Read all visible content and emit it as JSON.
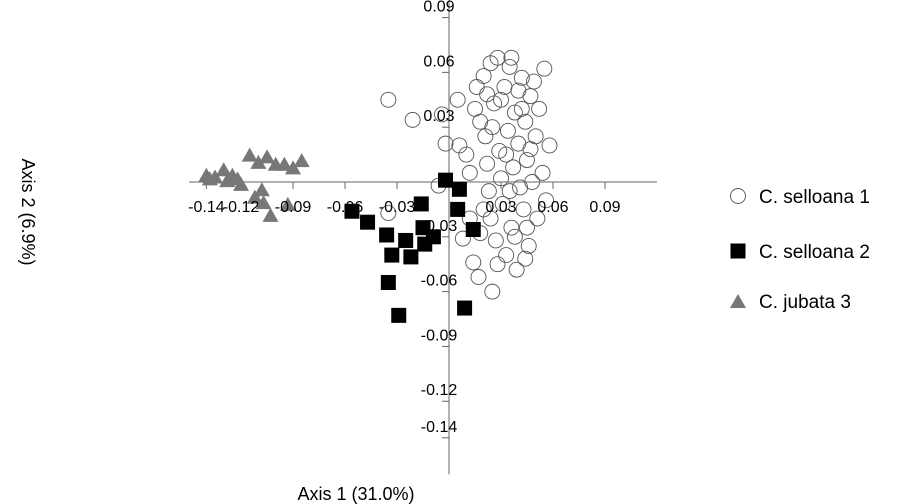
{
  "chart_data": {
    "type": "scatter",
    "title": "",
    "xlabel": "Axis 1 (31.0%)",
    "ylabel": "Axis 2 (6.9%)",
    "xlim": [
      -0.15,
      0.12
    ],
    "ylim": [
      -0.16,
      0.1
    ],
    "x_ticks": [
      -0.14,
      -0.12,
      -0.09,
      -0.06,
      -0.03,
      0.03,
      0.06,
      0.09
    ],
    "x_tick_labels": [
      "-0.14",
      "-0.12",
      "-0.09",
      "-0.06",
      "-0.03",
      "0.03",
      "0.06",
      "0.09"
    ],
    "y_ticks": [
      0.09,
      0.06,
      0.03,
      -0.03,
      -0.06,
      -0.09,
      -0.12,
      -0.14
    ],
    "y_tick_labels": [
      "0.09",
      "0.06",
      "0.03",
      "-0.03",
      "-0.06",
      "-0.09",
      "-0.12",
      "-0.14"
    ],
    "grid": false,
    "legend_position": "right",
    "series": [
      {
        "name": "C. selloana 1",
        "marker": "open-circle",
        "color": "#555555",
        "points": [
          [
            -0.035,
            0.045
          ],
          [
            -0.021,
            0.034
          ],
          [
            -0.035,
            -0.017
          ],
          [
            -0.004,
            0.037
          ],
          [
            -0.002,
            0.021
          ],
          [
            -0.006,
            -0.002
          ],
          [
            0.005,
            0.045
          ],
          [
            0.006,
            0.02
          ],
          [
            0.008,
            -0.031
          ],
          [
            0.01,
            0.015
          ],
          [
            0.012,
            0.005
          ],
          [
            0.014,
            -0.044
          ],
          [
            0.017,
            -0.052
          ],
          [
            0.018,
            0.033
          ],
          [
            0.02,
            0.058
          ],
          [
            0.021,
            0.025
          ],
          [
            0.022,
            0.01
          ],
          [
            0.023,
            -0.005
          ],
          [
            0.024,
            -0.02
          ],
          [
            0.025,
            -0.06
          ],
          [
            0.026,
            0.043
          ],
          [
            0.027,
            -0.032
          ],
          [
            0.028,
            0.068
          ],
          [
            0.029,
            0.017
          ],
          [
            0.03,
            0.002
          ],
          [
            0.031,
            -0.012
          ],
          [
            0.032,
            0.052
          ],
          [
            0.033,
            -0.04
          ],
          [
            0.034,
            0.028
          ],
          [
            0.035,
            0.063
          ],
          [
            0.036,
            -0.025
          ],
          [
            0.037,
            0.008
          ],
          [
            0.038,
            0.038
          ],
          [
            0.039,
            -0.048
          ],
          [
            0.04,
            0.021
          ],
          [
            0.041,
            -0.003
          ],
          [
            0.042,
            0.057
          ],
          [
            0.043,
            -0.015
          ],
          [
            0.044,
            0.033
          ],
          [
            0.045,
            0.012
          ],
          [
            0.046,
            -0.035
          ],
          [
            0.047,
            0.047
          ],
          [
            0.048,
            0.0
          ],
          [
            0.05,
            0.025
          ],
          [
            0.051,
            -0.02
          ],
          [
            0.052,
            0.04
          ],
          [
            0.054,
            0.005
          ],
          [
            0.055,
            0.062
          ],
          [
            0.056,
            -0.01
          ],
          [
            0.058,
            0.02
          ],
          [
            0.02,
            -0.015
          ],
          [
            0.025,
            0.03
          ],
          [
            0.03,
            0.045
          ],
          [
            0.035,
            -0.005
          ],
          [
            0.04,
            0.05
          ],
          [
            0.045,
            -0.025
          ],
          [
            0.015,
            0.04
          ],
          [
            0.018,
            -0.028
          ],
          [
            0.022,
            0.048
          ],
          [
            0.028,
            -0.045
          ],
          [
            0.033,
            0.015
          ],
          [
            0.038,
            -0.03
          ],
          [
            0.042,
            0.04
          ],
          [
            0.047,
            0.018
          ],
          [
            0.012,
            -0.02
          ],
          [
            0.016,
            0.052
          ],
          [
            0.024,
            0.065
          ],
          [
            0.036,
            0.068
          ],
          [
            0.044,
            -0.042
          ],
          [
            0.049,
            0.055
          ]
        ]
      },
      {
        "name": "C. selloana 2",
        "marker": "filled-square",
        "color": "#000000",
        "points": [
          [
            -0.056,
            -0.016
          ],
          [
            -0.047,
            -0.022
          ],
          [
            -0.036,
            -0.029
          ],
          [
            -0.025,
            -0.032
          ],
          [
            -0.014,
            -0.034
          ],
          [
            -0.015,
            -0.025
          ],
          [
            -0.009,
            -0.03
          ],
          [
            -0.002,
            0.001
          ],
          [
            0.006,
            -0.004
          ],
          [
            0.005,
            -0.015
          ],
          [
            0.014,
            -0.026
          ],
          [
            -0.033,
            -0.04
          ],
          [
            -0.022,
            -0.041
          ],
          [
            -0.035,
            -0.055
          ],
          [
            -0.029,
            -0.073
          ],
          [
            0.009,
            -0.069
          ],
          [
            -0.016,
            -0.012
          ]
        ]
      },
      {
        "name": "C. jubata 3",
        "marker": "filled-triangle",
        "color": "#777777",
        "points": [
          [
            -0.14,
            0.004
          ],
          [
            -0.135,
            0.003
          ],
          [
            -0.13,
            0.007
          ],
          [
            -0.125,
            0.004
          ],
          [
            -0.12,
            -0.001
          ],
          [
            -0.115,
            0.015
          ],
          [
            -0.11,
            0.011
          ],
          [
            -0.105,
            0.014
          ],
          [
            -0.1,
            0.01
          ],
          [
            -0.095,
            0.01
          ],
          [
            -0.09,
            0.008
          ],
          [
            -0.085,
            0.012
          ],
          [
            -0.138,
            0.002
          ],
          [
            -0.128,
            0.001
          ],
          [
            -0.122,
            0.002
          ],
          [
            -0.108,
            -0.004
          ],
          [
            -0.107,
            -0.011
          ],
          [
            -0.103,
            -0.018
          ],
          [
            -0.093,
            -0.012
          ],
          [
            -0.112,
            -0.008
          ]
        ]
      }
    ]
  }
}
